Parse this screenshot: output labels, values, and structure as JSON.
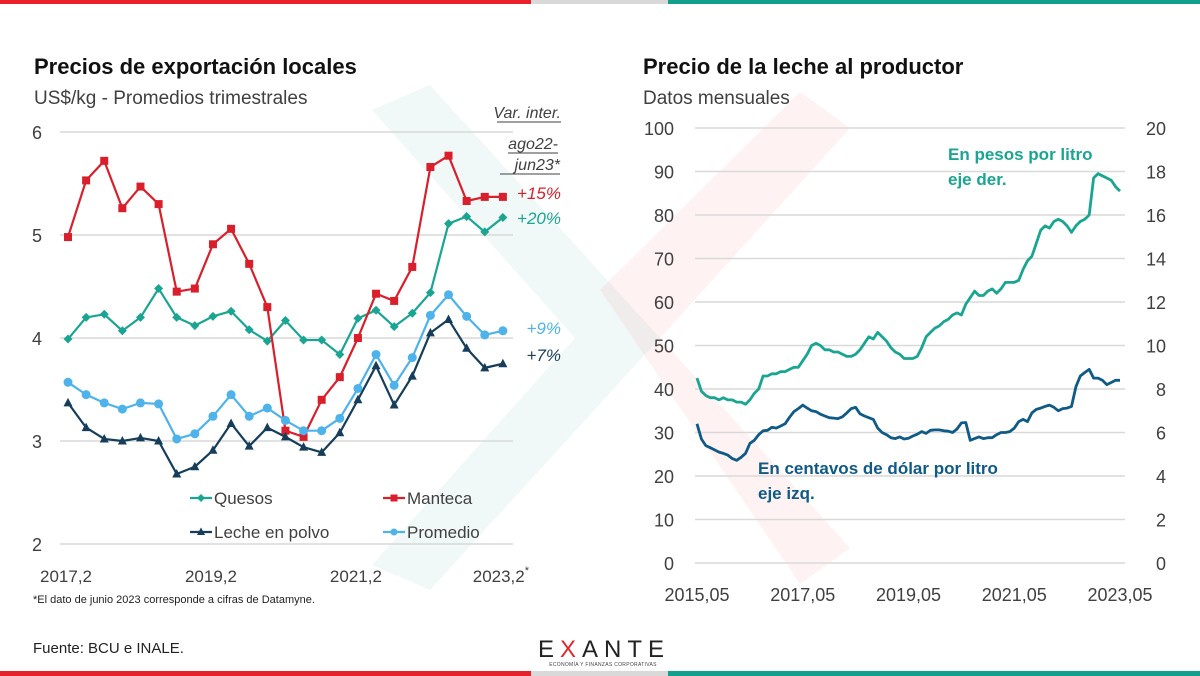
{
  "colors": {
    "red_bar": "#e8202b",
    "grey_bar": "#d9d9d9",
    "teal_bar": "#12a08d",
    "quesos": "#1aa592",
    "manteca": "#d91f2b",
    "leche_polvo": "#163e5a",
    "promedio": "#4db3ea",
    "pesos_line": "#1aa592",
    "usd_line": "#0f5a86",
    "grid": "#d9d9d9",
    "axis_text": "#404040"
  },
  "left_panel": {
    "title": "Precios de exportación locales",
    "subtitle": "US$/kg - Promedios trimestrales",
    "var_header": [
      "Var. inter.",
      "ago22-",
      "jun23*"
    ],
    "footnote": "*El dato de junio 2023 corresponde  a cifras de Datamyne."
  },
  "right_panel": {
    "title": "Precio de la leche al productor",
    "subtitle": "Datos mensuales",
    "annotation_pesos": [
      "En pesos por litro",
      "eje der."
    ],
    "annotation_usd": [
      "En centavos de dólar por litro",
      "eje izq."
    ]
  },
  "footer": {
    "source": "Fuente: BCU e INALE.",
    "logo_text_1": "E",
    "logo_text_x": "X",
    "logo_text_2": "ANTE",
    "logo_tagline": "ECONOMÍA Y FINANZAS CORPORATIVAS"
  },
  "chart_data": [
    {
      "type": "line",
      "title": "Precios de exportación locales",
      "subtitle": "US$/kg - Promedios trimestrales",
      "xlabel": "",
      "ylabel": "US$/kg",
      "ylim": [
        2,
        6
      ],
      "yticks": [
        2,
        3,
        4,
        5,
        6
      ],
      "grid": true,
      "legend_position": "bottom-center",
      "x_tick_labels": [
        "2017,2",
        "2019,2",
        "2021,2",
        "2023,2*"
      ],
      "x_tick_indices": [
        0,
        8,
        16,
        24
      ],
      "x": [
        "2017,2",
        "2017,3",
        "2017,4",
        "2018,1",
        "2018,2",
        "2018,3",
        "2018,4",
        "2019,1",
        "2019,2",
        "2019,3",
        "2019,4",
        "2020,1",
        "2020,2",
        "2020,3",
        "2020,4",
        "2021,1",
        "2021,2",
        "2021,3",
        "2021,4",
        "2022,1",
        "2022,2",
        "2022,3",
        "2022,4",
        "2023,1",
        "2023,2"
      ],
      "series": [
        {
          "name": "Quesos",
          "marker": "diamond",
          "color_key": "quesos",
          "end_label": "+20%",
          "values": [
            3.99,
            4.2,
            4.23,
            4.07,
            4.2,
            4.48,
            4.2,
            4.12,
            4.21,
            4.26,
            4.08,
            3.97,
            4.17,
            3.98,
            3.98,
            3.84,
            4.19,
            4.27,
            4.11,
            4.24,
            4.44,
            5.11,
            5.18,
            5.03,
            5.17
          ]
        },
        {
          "name": "Manteca",
          "marker": "square",
          "color_key": "manteca",
          "end_label": "+15%",
          "values": [
            4.98,
            5.53,
            5.72,
            5.26,
            5.47,
            5.3,
            4.45,
            4.48,
            4.91,
            5.06,
            4.72,
            4.3,
            3.1,
            3.04,
            3.4,
            3.62,
            4.0,
            4.43,
            4.36,
            4.69,
            5.66,
            5.77,
            5.33,
            5.37,
            5.37
          ]
        },
        {
          "name": "Leche en polvo",
          "marker": "triangle",
          "color_key": "leche_polvo",
          "end_label": "+7%",
          "values": [
            3.37,
            3.13,
            3.02,
            3.0,
            3.03,
            3.0,
            2.68,
            2.75,
            2.91,
            3.17,
            2.95,
            3.13,
            3.04,
            2.94,
            2.89,
            3.08,
            3.4,
            3.73,
            3.35,
            3.63,
            4.05,
            4.18,
            3.9,
            3.71,
            3.75
          ]
        },
        {
          "name": "Promedio",
          "marker": "circle",
          "color_key": "promedio",
          "end_label": "+9%",
          "values": [
            3.57,
            3.45,
            3.37,
            3.31,
            3.37,
            3.36,
            3.02,
            3.07,
            3.24,
            3.45,
            3.24,
            3.32,
            3.2,
            3.1,
            3.1,
            3.22,
            3.51,
            3.84,
            3.54,
            3.81,
            4.22,
            4.42,
            4.21,
            4.03,
            4.07
          ]
        }
      ],
      "legend": [
        "Quesos",
        "Manteca",
        "Leche en polvo",
        "Promedio"
      ],
      "annotations": [
        "Var. inter. ago22-jun23*",
        "+15%",
        "+20%",
        "+9%",
        "+7%"
      ]
    },
    {
      "type": "line",
      "title": "Precio de la leche al productor",
      "subtitle": "Datos mensuales",
      "xlabel": "",
      "y_left_label": "centavos de dólar por litro",
      "y_right_label": "pesos por litro",
      "ylim_left": [
        0,
        100
      ],
      "ylim_right": [
        0,
        20
      ],
      "yticks_left": [
        0,
        10,
        20,
        30,
        40,
        50,
        60,
        70,
        80,
        90,
        100
      ],
      "yticks_right": [
        0,
        2,
        4,
        6,
        8,
        10,
        12,
        14,
        16,
        18,
        20
      ],
      "grid": true,
      "x_start": "2015,05",
      "x_end": "2023,05",
      "x_tick_labels": [
        "2015,05",
        "2017,05",
        "2019,05",
        "2021,05",
        "2023,05"
      ],
      "x_tick_indices": [
        0,
        24,
        48,
        72,
        96
      ],
      "series": [
        {
          "name": "En pesos por litro (eje der.)",
          "axis": "right",
          "color_key": "pesos_line",
          "values": [
            8.5,
            7.9,
            7.7,
            7.6,
            7.6,
            7.5,
            7.6,
            7.5,
            7.5,
            7.4,
            7.4,
            7.3,
            7.5,
            7.8,
            8.0,
            8.6,
            8.6,
            8.7,
            8.7,
            8.8,
            8.8,
            8.9,
            9.0,
            9.0,
            9.3,
            9.6,
            10.0,
            10.1,
            10.0,
            9.8,
            9.8,
            9.7,
            9.7,
            9.6,
            9.5,
            9.5,
            9.6,
            9.8,
            10.1,
            10.4,
            10.3,
            10.6,
            10.4,
            10.2,
            9.9,
            9.7,
            9.6,
            9.4,
            9.4,
            9.4,
            9.5,
            9.9,
            10.4,
            10.6,
            10.8,
            10.9,
            11.1,
            11.2,
            11.4,
            11.5,
            11.4,
            11.9,
            12.2,
            12.5,
            12.3,
            12.3,
            12.5,
            12.6,
            12.4,
            12.6,
            12.9,
            12.9,
            12.9,
            13.0,
            13.5,
            13.9,
            14.1,
            14.7,
            15.3,
            15.5,
            15.4,
            15.7,
            15.8,
            15.7,
            15.5,
            15.2,
            15.5,
            15.7,
            15.8,
            16.0,
            17.7,
            17.9,
            17.8,
            17.7,
            17.6,
            17.3,
            17.1
          ],
          "values_tail": [
            16.9,
            16.7,
            16.5,
            16.3,
            16.4,
            16.7,
            16.9,
            17.1,
            17.5,
            17.5
          ]
        },
        {
          "name": "En centavos de dólar por litro (eje izq.)",
          "axis": "left",
          "color_key": "usd_line",
          "values": [
            32.0,
            28.5,
            27.0,
            26.5,
            26.0,
            25.5,
            25.2,
            24.8,
            24.0,
            23.6,
            24.3,
            25.2,
            27.5,
            28.2,
            29.5,
            30.4,
            30.5,
            31.2,
            31.0,
            31.5,
            32.0,
            33.5,
            34.8,
            35.5,
            36.3,
            35.6,
            35.0,
            34.8,
            34.2,
            33.8,
            33.4,
            33.3,
            33.2,
            33.6,
            34.5,
            35.5,
            35.8,
            34.3,
            33.8,
            33.4,
            33.0,
            31.0,
            30.0,
            29.5,
            28.8,
            28.6,
            29.0,
            28.5,
            28.7,
            29.2,
            29.6,
            30.2,
            29.8,
            30.5,
            30.6,
            30.6,
            30.4,
            30.3,
            30.0,
            30.8,
            32.2,
            32.3,
            28.2,
            28.6,
            29.0,
            28.6,
            28.8,
            28.8,
            29.5,
            30.0,
            30.0,
            30.2,
            31.0,
            32.5,
            33.0,
            32.5,
            34.5,
            35.3,
            35.6,
            36.0,
            36.3,
            35.8,
            35.0,
            35.5,
            35.6,
            36.0,
            40.5,
            43.0,
            43.8,
            44.5,
            42.5,
            42.5,
            42.0,
            41.0,
            41.5,
            42.0,
            42.0
          ],
          "values_tail": [
            42.3,
            42.5,
            43.5,
            44.0,
            45.0,
            44.8
          ]
        }
      ],
      "annotations": [
        "En pesos por litro eje der.",
        "En centavos de dólar por litro eje izq."
      ]
    }
  ]
}
